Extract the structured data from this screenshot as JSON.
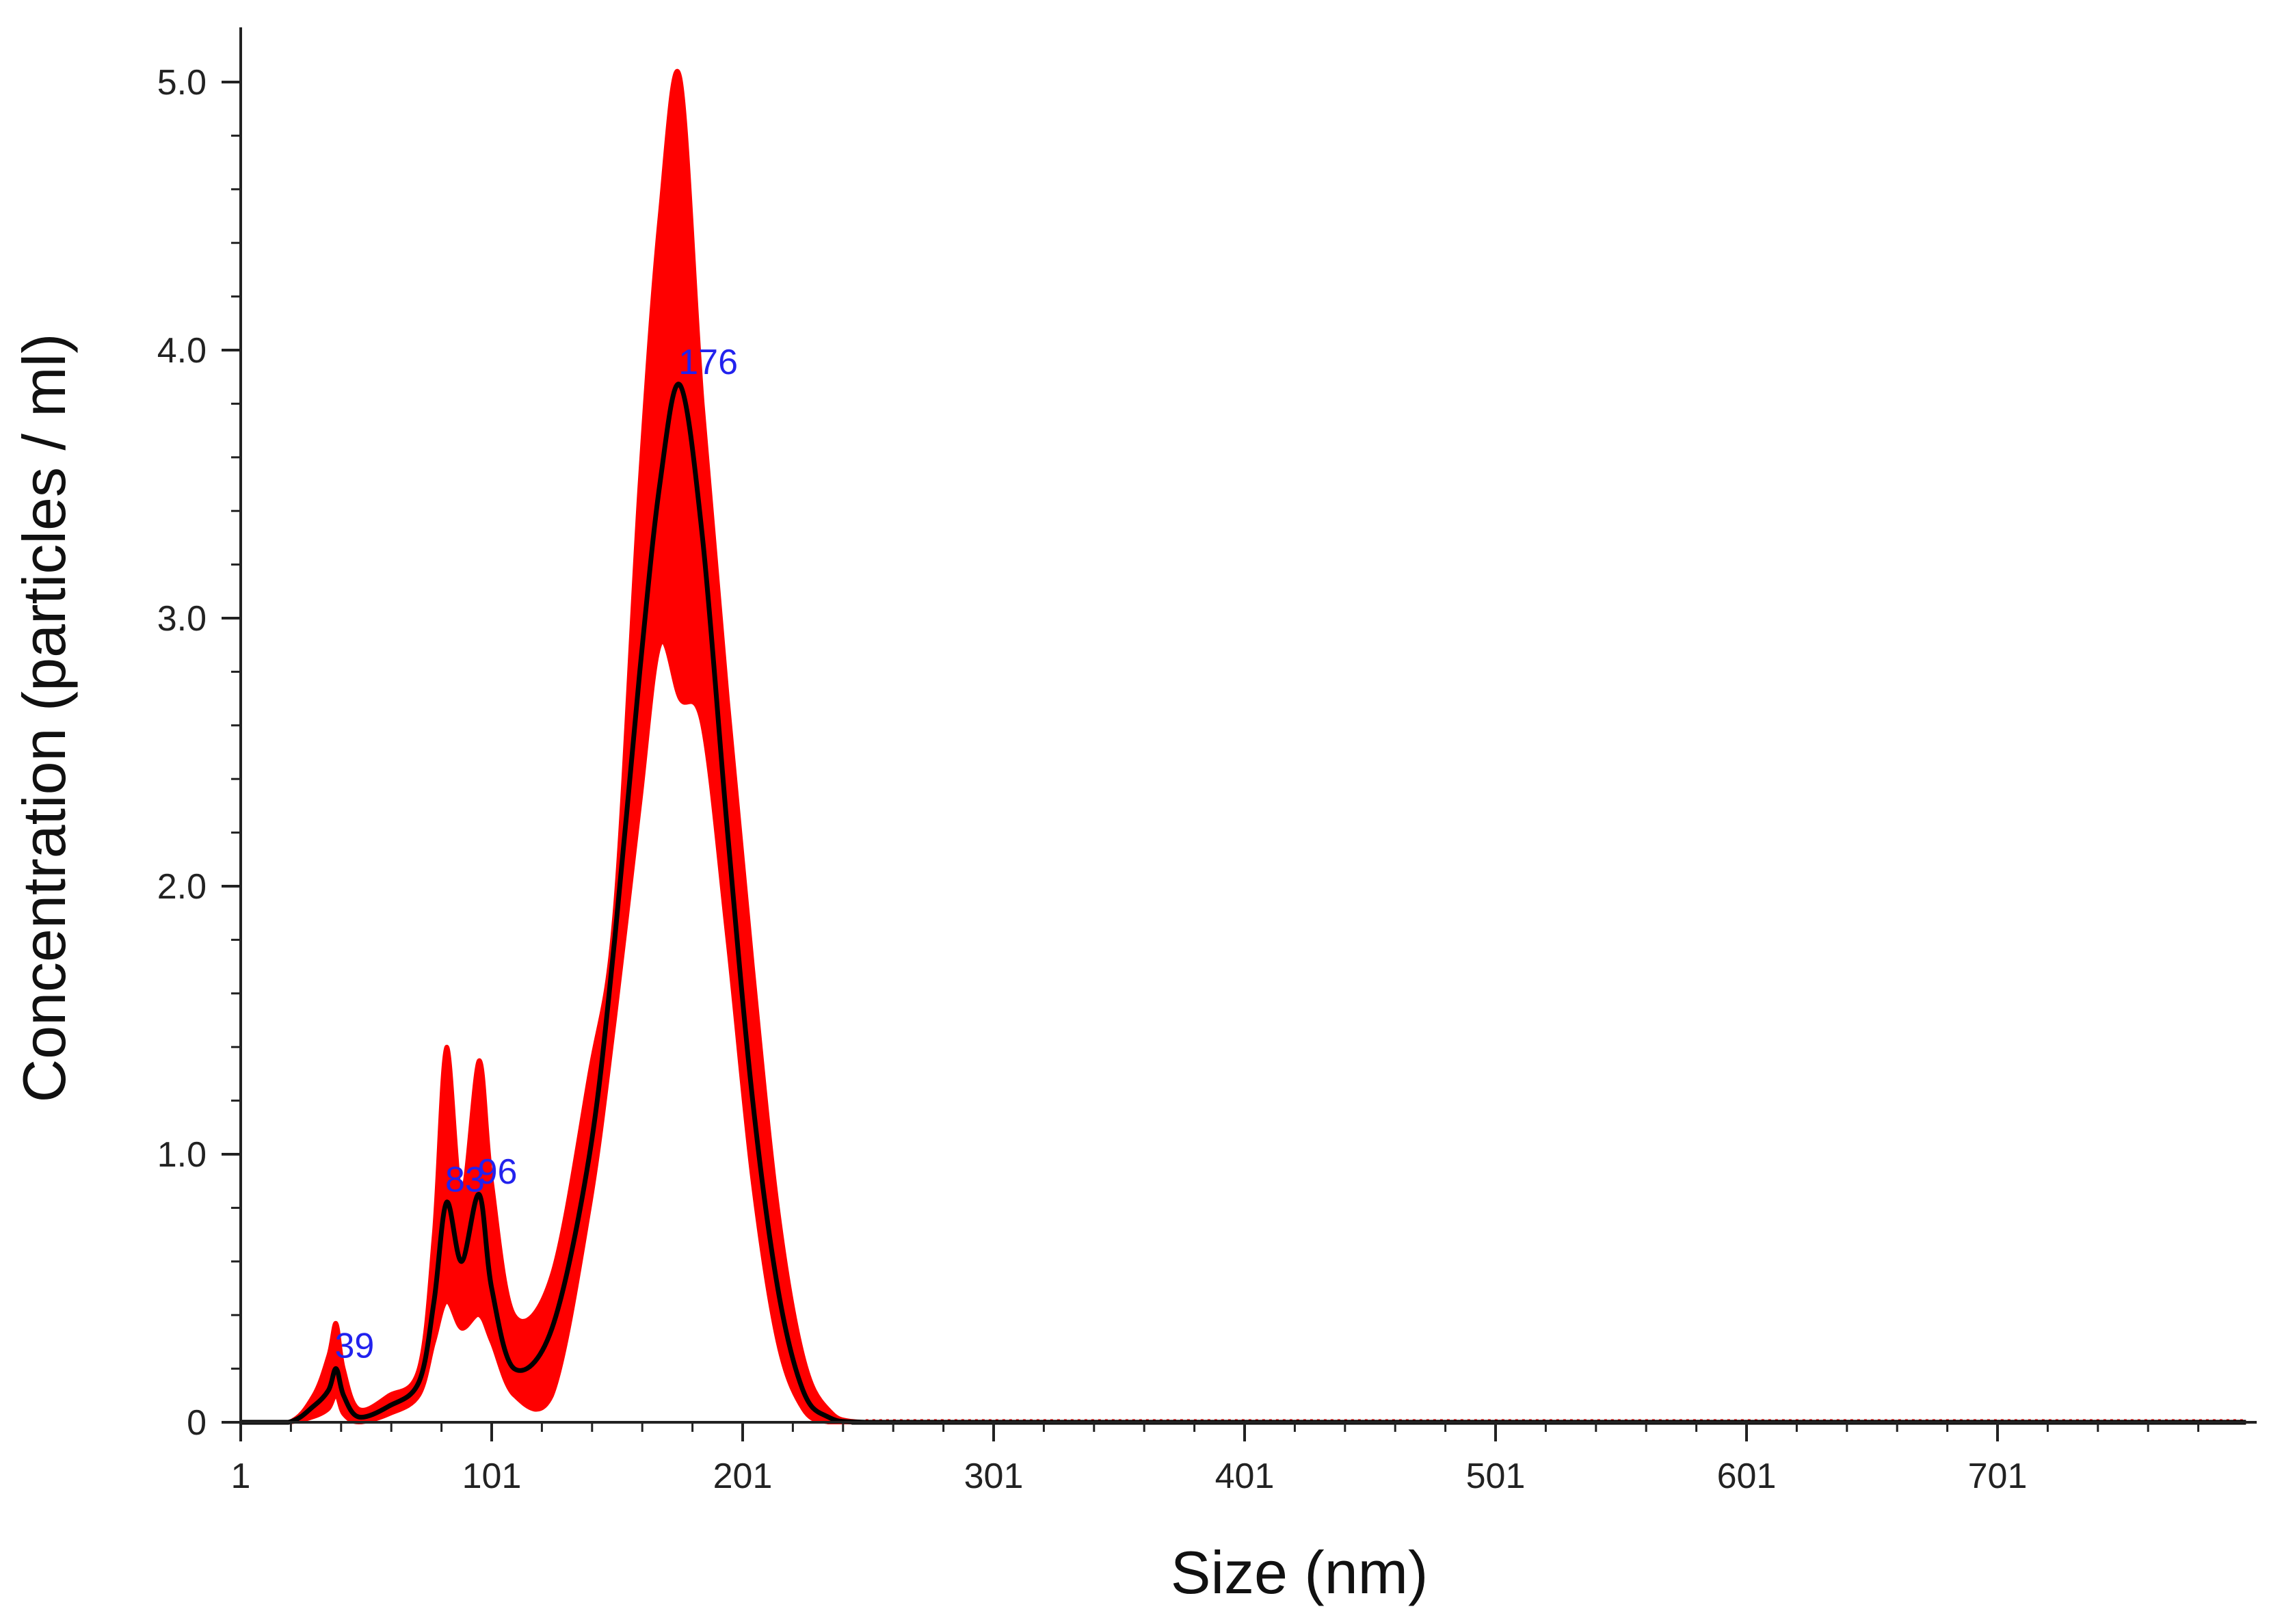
{
  "chart_data": {
    "type": "line",
    "xlabel": "Size (nm)",
    "ylabel": "Concentration (particles / ml)",
    "xlim": [
      1,
      800
    ],
    "ylim": [
      0,
      5.2
    ],
    "x_ticks": [
      "1",
      "101",
      "201",
      "301",
      "401",
      "501",
      "601",
      "701"
    ],
    "y_ticks": [
      "0",
      "1.0",
      "2.0",
      "3.0",
      "4.0",
      "5.0"
    ],
    "grid": false,
    "legend": "none",
    "colors": {
      "mean_line": "#000000",
      "error_band": "#ff0000",
      "peak_labels": "#2222ee",
      "axis": "#222222"
    },
    "series": [
      {
        "role": "mean",
        "x": [
          1,
          20,
          30,
          36,
          39,
          42,
          48,
          60,
          72,
          78,
          83,
          89,
          96,
          101,
          110,
          125,
          140,
          150,
          160,
          168,
          176,
          185,
          195,
          205,
          215,
          225,
          235,
          250,
          300,
          800
        ],
        "values": [
          0,
          0,
          0.06,
          0.12,
          0.2,
          0.1,
          0.02,
          0.06,
          0.15,
          0.45,
          0.82,
          0.6,
          0.85,
          0.5,
          0.2,
          0.35,
          1.0,
          1.8,
          2.8,
          3.5,
          3.87,
          3.3,
          2.2,
          1.2,
          0.5,
          0.12,
          0.02,
          0,
          0,
          0
        ]
      },
      {
        "role": "error_upper",
        "x": [
          1,
          20,
          30,
          36,
          39,
          42,
          48,
          60,
          72,
          78,
          83,
          89,
          96,
          101,
          110,
          125,
          140,
          150,
          160,
          168,
          176,
          185,
          195,
          205,
          215,
          225,
          235,
          250,
          300,
          800
        ],
        "values": [
          0,
          0,
          0.1,
          0.25,
          0.37,
          0.2,
          0.05,
          0.1,
          0.2,
          0.7,
          1.4,
          0.85,
          1.35,
          0.9,
          0.4,
          0.55,
          1.3,
          1.9,
          3.5,
          4.5,
          5.02,
          3.8,
          2.7,
          1.7,
          0.8,
          0.25,
          0.05,
          0,
          0,
          0
        ]
      },
      {
        "role": "error_lower",
        "x": [
          1,
          20,
          30,
          36,
          39,
          42,
          48,
          60,
          72,
          78,
          83,
          89,
          96,
          101,
          110,
          125,
          140,
          150,
          160,
          168,
          176,
          185,
          195,
          205,
          215,
          225,
          235,
          250,
          300,
          800
        ],
        "values": [
          0,
          0,
          0.02,
          0.05,
          0.1,
          0.03,
          0,
          0.03,
          0.1,
          0.3,
          0.45,
          0.35,
          0.4,
          0.3,
          0.1,
          0.1,
          0.8,
          1.5,
          2.3,
          2.9,
          2.7,
          2.6,
          1.8,
          0.9,
          0.3,
          0.05,
          0,
          0,
          0,
          0
        ]
      }
    ],
    "peak_labels": [
      {
        "text": "39",
        "x": 39,
        "y": 0.2
      },
      {
        "text": "83",
        "x": 83,
        "y": 0.82
      },
      {
        "text": "96",
        "x": 96,
        "y": 0.85
      },
      {
        "text": "176",
        "x": 176,
        "y": 3.87
      }
    ]
  }
}
